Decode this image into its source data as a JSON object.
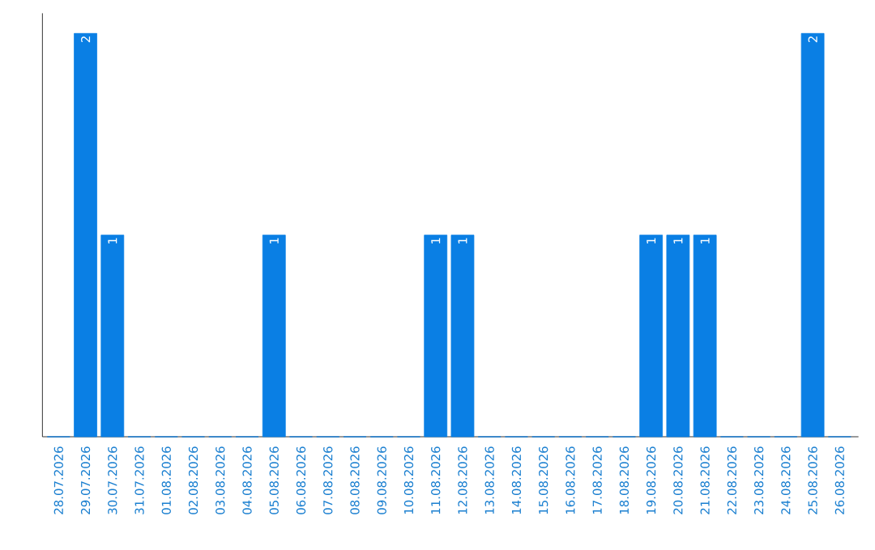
{
  "chart_data": {
    "type": "bar",
    "categories": [
      "28.07.2026",
      "29.07.2026",
      "30.07.2026",
      "31.07.2026",
      "01.08.2026",
      "02.08.2026",
      "03.08.2026",
      "04.08.2026",
      "05.08.2026",
      "06.08.2026",
      "07.08.2026",
      "08.08.2026",
      "09.08.2026",
      "10.08.2026",
      "11.08.2026",
      "12.08.2026",
      "13.08.2026",
      "14.08.2026",
      "15.08.2026",
      "16.08.2026",
      "17.08.2026",
      "18.08.2026",
      "19.08.2026",
      "20.08.2026",
      "21.08.2026",
      "22.08.2026",
      "23.08.2026",
      "24.08.2026",
      "25.08.2026",
      "26.08.2026"
    ],
    "values": [
      0,
      2,
      1,
      0,
      0,
      0,
      0,
      0,
      1,
      0,
      0,
      0,
      0,
      0,
      1,
      1,
      0,
      0,
      0,
      0,
      0,
      0,
      1,
      1,
      1,
      0,
      0,
      0,
      2,
      0
    ],
    "value_labels": [
      null,
      "2",
      "1",
      null,
      null,
      null,
      null,
      null,
      "1",
      null,
      null,
      null,
      null,
      null,
      "1",
      "1",
      null,
      null,
      null,
      null,
      null,
      null,
      "1",
      "1",
      "1",
      null,
      null,
      null,
      "2",
      null
    ],
    "color": "#0a7fe4",
    "tick_labels": "x",
    "grid": false
  }
}
